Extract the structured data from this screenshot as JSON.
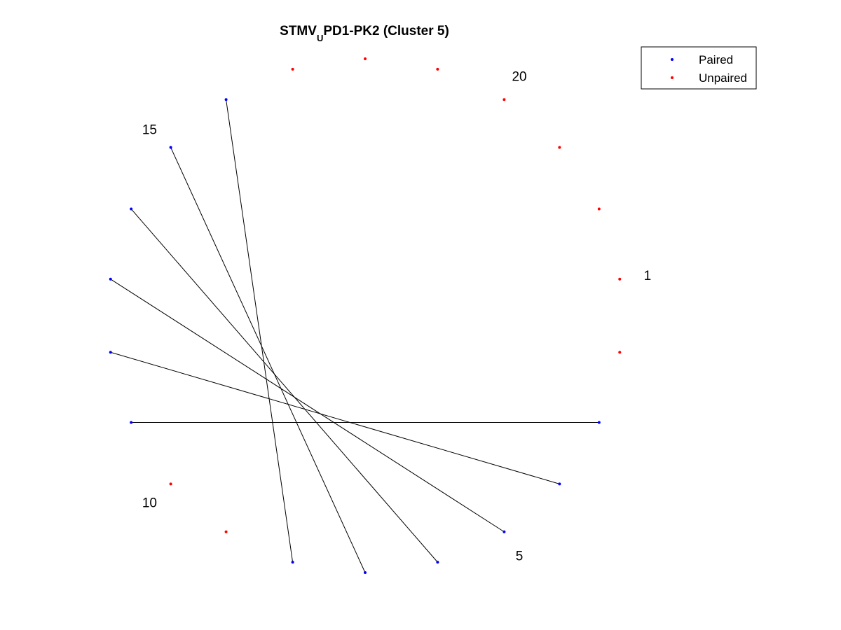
{
  "chart_data": {
    "type": "scatter",
    "title": {
      "prefix": "STMV",
      "subscript": "U",
      "suffix": "PD1-PK2 (Cluster 5)"
    },
    "n_nodes": 22,
    "numbered_nodes": [
      1,
      5,
      10,
      15,
      20
    ],
    "pairs": [
      [
        3,
        11
      ],
      [
        4,
        12
      ],
      [
        5,
        13
      ],
      [
        6,
        14
      ],
      [
        7,
        15
      ],
      [
        8,
        16
      ]
    ],
    "series": [
      {
        "name": "Paired",
        "color": "#0000ff",
        "nodes": [
          3,
          4,
          5,
          6,
          7,
          8,
          11,
          12,
          13,
          14,
          15,
          16
        ]
      },
      {
        "name": "Unpaired",
        "color": "#ff0000",
        "nodes": [
          1,
          2,
          9,
          10,
          17,
          18,
          19,
          20,
          21,
          22
        ]
      }
    ],
    "grid": false,
    "legend_position": "top-right"
  }
}
